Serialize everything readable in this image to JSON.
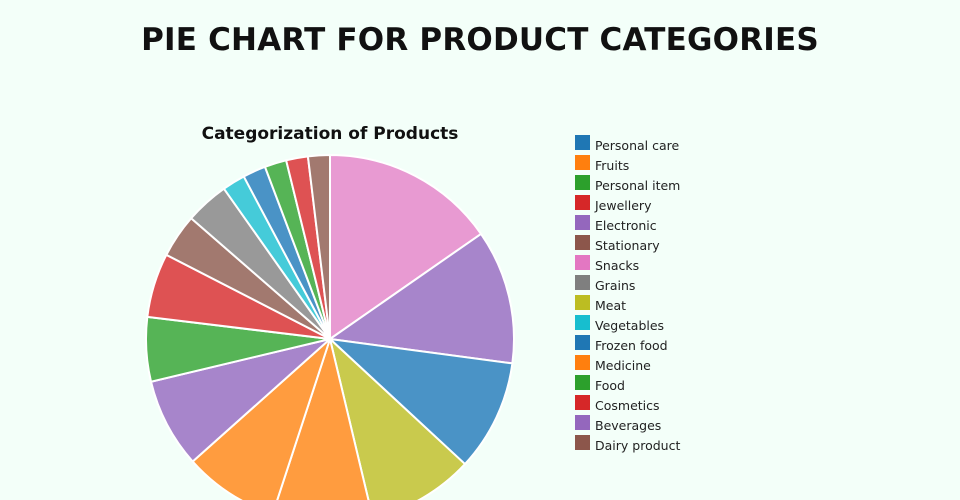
{
  "page": {
    "title": "PIE CHART FOR PRODUCT CATEGORIES"
  },
  "chart_data": {
    "type": "pie",
    "title": "Categorization of Products",
    "legend_placement": "right",
    "legend": [
      {
        "label": "Personal care",
        "color": "#1f77b4"
      },
      {
        "label": "Fruits",
        "color": "#ff7f0e"
      },
      {
        "label": "Personal item",
        "color": "#2ca02c"
      },
      {
        "label": "Jewellery",
        "color": "#d62728"
      },
      {
        "label": "Electronic",
        "color": "#9467bd"
      },
      {
        "label": "Stationary",
        "color": "#8c564b"
      },
      {
        "label": "Snacks",
        "color": "#e377c2"
      },
      {
        "label": "Grains",
        "color": "#7f7f7f"
      },
      {
        "label": "Meat",
        "color": "#bcbd22"
      },
      {
        "label": "Vegetables",
        "color": "#17becf"
      },
      {
        "label": "Frozen food",
        "color": "#1f77b4"
      },
      {
        "label": "Medicine",
        "color": "#ff7f0e"
      },
      {
        "label": "Food",
        "color": "#2ca02c"
      },
      {
        "label": "Cosmetics",
        "color": "#d62728"
      },
      {
        "label": "Beverages",
        "color": "#9467bd"
      },
      {
        "label": "Dairy product",
        "color": "#8c564b"
      }
    ],
    "slices_clockwise_from_top": [
      {
        "label": "Snacks",
        "value": 15.2,
        "color": "#e89ad2"
      },
      {
        "label": "Electronic",
        "value": 11.7,
        "color": "#a785cb"
      },
      {
        "label": "Personal care",
        "value": 9.7,
        "color": "#4a93c6"
      },
      {
        "label": "Meat",
        "value": 9.3,
        "color": "#c9ca4d"
      },
      {
        "label": "Fruits",
        "value": 8.7,
        "color": "#ff9c3f"
      },
      {
        "label": "Medicine",
        "value": 8.3,
        "color": "#ff9c3f"
      },
      {
        "label": "Beverages",
        "value": 7.8,
        "color": "#a785cb"
      },
      {
        "label": "Food",
        "value": 5.6,
        "color": "#56b456"
      },
      {
        "label": "Cosmetics",
        "value": 5.6,
        "color": "#de5253"
      },
      {
        "label": "Stationary",
        "value": 3.8,
        "color": "#a2796f"
      },
      {
        "label": "Grains",
        "value": 3.8,
        "color": "#999999"
      },
      {
        "label": "Vegetables",
        "value": 2.0,
        "color": "#45cbd9"
      },
      {
        "label": "Frozen food",
        "value": 2.0,
        "color": "#4a93c6"
      },
      {
        "label": "Personal item",
        "value": 1.9,
        "color": "#56b456"
      },
      {
        "label": "Jewellery",
        "value": 1.9,
        "color": "#de5253"
      },
      {
        "label": "Dairy product",
        "value": 1.9,
        "color": "#a2796f"
      }
    ]
  }
}
